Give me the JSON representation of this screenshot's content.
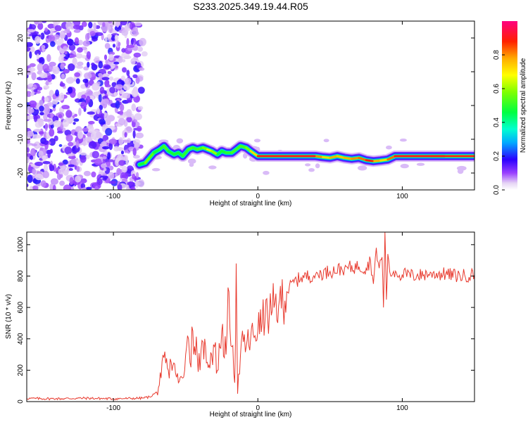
{
  "title": "S233.2025.349.19.44.R05",
  "chart_data": [
    {
      "type": "heatmap",
      "name": "spectrogram",
      "xlabel": "Height of straight line (km)",
      "ylabel": "Frequency (Hz)",
      "xlim": [
        -160,
        150
      ],
      "ylim": [
        -25,
        25
      ],
      "x_ticks": [
        -100,
        0,
        100
      ],
      "x_tick_labels": [
        "-100",
        "0",
        "100"
      ],
      "y_ticks": [
        -20,
        -10,
        0,
        10,
        20
      ],
      "y_tick_labels": [
        "-20",
        "-10",
        "0",
        "10",
        "20"
      ],
      "noise_region_x": [
        -160,
        -78
      ],
      "signal_track": {
        "x": [
          -82,
          -78,
          -75,
          -72,
          -68,
          -65,
          -62,
          -58,
          -55,
          -52,
          -48,
          -45,
          -42,
          -38,
          -35,
          -32,
          -28,
          -25,
          -22,
          -18,
          -15,
          -12,
          -8,
          -5,
          0,
          20,
          40,
          45,
          50,
          55,
          60,
          65,
          70,
          75,
          80,
          85,
          90,
          95,
          110,
          120,
          130,
          150
        ],
        "y": [
          -17.5,
          -17,
          -15.5,
          -14,
          -13,
          -12,
          -13.5,
          -14.5,
          -14,
          -15,
          -13,
          -12.5,
          -13,
          -12.5,
          -13,
          -13.5,
          -14.5,
          -13.5,
          -14,
          -14,
          -13,
          -12,
          -12.5,
          -13.5,
          -15,
          -15,
          -15,
          -15.3,
          -15.5,
          -15,
          -15.5,
          -15.8,
          -15.5,
          -16.2,
          -16.5,
          -16.3,
          -16,
          -15,
          -15,
          -15,
          -15,
          -15
        ],
        "amplitude": [
          0.4,
          0.55,
          0.6,
          0.5,
          0.45,
          0.55,
          0.5,
          0.45,
          0.5,
          0.45,
          0.55,
          0.5,
          0.5,
          0.55,
          0.6,
          0.7,
          0.5,
          0.45,
          0.5,
          0.5,
          0.55,
          0.5,
          0.55,
          0.6,
          0.85,
          0.95,
          0.9,
          0.7,
          0.75,
          0.8,
          0.7,
          0.85,
          0.75,
          0.9,
          0.85,
          0.7,
          0.75,
          0.9,
          0.95,
          0.9,
          0.85,
          0.8
        ]
      },
      "colorbar": {
        "label": "Normalized spectral amplitude",
        "range": [
          0,
          1
        ],
        "ticks": [
          0.0,
          0.2,
          0.4,
          0.6,
          0.8
        ],
        "tick_labels": [
          "0.0",
          "0.2",
          "0.4",
          "0.6",
          "0.8"
        ]
      }
    },
    {
      "type": "line",
      "name": "snr",
      "xlabel": "Height of straight line (km)",
      "ylabel": "SNR (10 * v/v)",
      "xlim": [
        -160,
        150
      ],
      "ylim": [
        0,
        1080
      ],
      "x_ticks": [
        -100,
        0,
        100
      ],
      "x_tick_labels": [
        "-100",
        "0",
        "100"
      ],
      "y_ticks": [
        0,
        200,
        400,
        600,
        800,
        1000
      ],
      "y_tick_labels": [
        "0",
        "200",
        "400",
        "600",
        "800",
        "1000"
      ],
      "series": [
        {
          "name": "SNR",
          "color": "#e83a2e",
          "x": [
            -160,
            -140,
            -120,
            -100,
            -90,
            -80,
            -75,
            -70,
            -67,
            -65,
            -62,
            -60,
            -57,
            -55,
            -52,
            -50,
            -48,
            -47,
            -45,
            -42,
            -40,
            -38,
            -35,
            -32,
            -30,
            -28,
            -25,
            -22,
            -20,
            -18,
            -16,
            -15,
            -14,
            -12,
            -10,
            -8,
            -5,
            -2,
            0,
            3,
            5,
            8,
            10,
            15,
            20,
            25,
            30,
            40,
            50,
            60,
            70,
            75,
            78,
            80,
            82,
            84,
            86,
            87,
            88,
            89,
            90,
            92,
            94,
            96,
            100,
            110,
            120,
            130,
            140,
            150
          ],
          "y": [
            20,
            18,
            22,
            18,
            20,
            22,
            30,
            60,
            150,
            280,
            200,
            250,
            180,
            120,
            150,
            300,
            400,
            250,
            450,
            300,
            200,
            380,
            250,
            300,
            350,
            200,
            450,
            300,
            700,
            350,
            120,
            880,
            50,
            300,
            380,
            350,
            400,
            420,
            450,
            500,
            520,
            560,
            580,
            650,
            700,
            760,
            790,
            810,
            830,
            850,
            860,
            850,
            900,
            750,
            980,
            850,
            920,
            600,
            1080,
            650,
            940,
            800,
            830,
            820,
            810,
            800,
            820,
            810,
            800,
            810
          ]
        }
      ]
    }
  ]
}
